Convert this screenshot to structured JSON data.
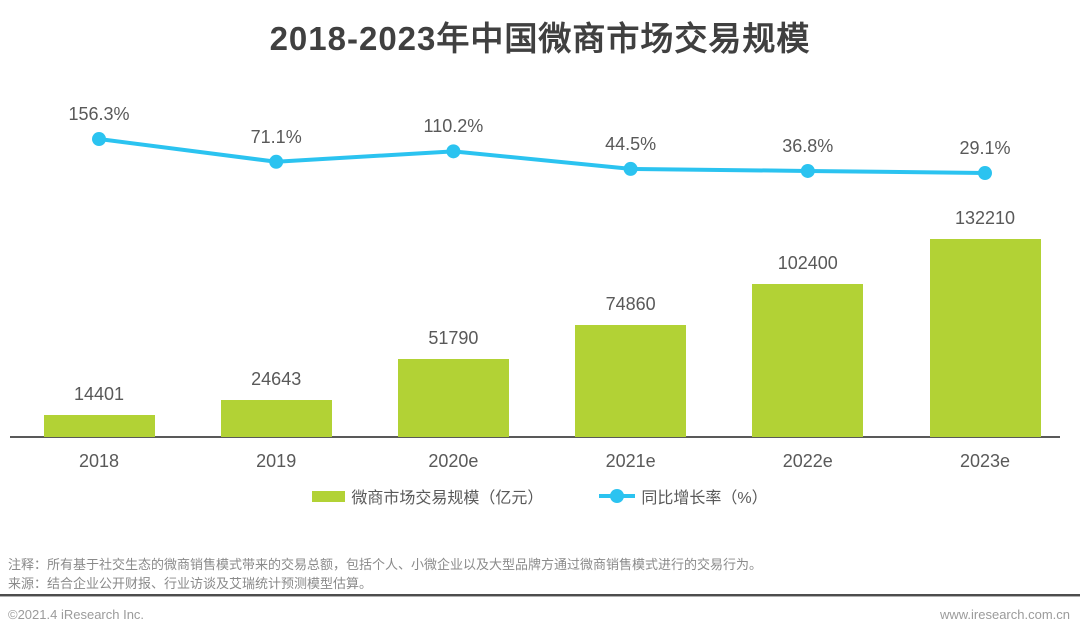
{
  "title": "2018-2023年中国微商市场交易规模",
  "chart_data": {
    "type": "bar",
    "categories": [
      "2018",
      "2019",
      "2020e",
      "2021e",
      "2022e",
      "2023e"
    ],
    "series": [
      {
        "name": "微商市场交易规模（亿元）",
        "type": "bar",
        "values": [
          14401,
          24643,
          51790,
          74860,
          102400,
          132210
        ],
        "value_labels": [
          "14401",
          "24643",
          "51790",
          "74860",
          "102400",
          "132210"
        ],
        "color": "#b2d235"
      },
      {
        "name": "同比增长率（%）",
        "type": "line",
        "values": [
          156.3,
          71.1,
          110.2,
          44.5,
          36.8,
          29.1
        ],
        "value_labels": [
          "156.3%",
          "71.1%",
          "110.2%",
          "44.5%",
          "36.8%",
          "29.1%"
        ],
        "color": "#2bc3f0"
      }
    ],
    "title": "2018-2023年中国微商市场交易规模",
    "xlabel": "",
    "ylabel": "",
    "ylim": [
      0,
      140000
    ],
    "grid": false,
    "legend_position": "bottom"
  },
  "legend": {
    "bar_label": "微商市场交易规模（亿元）",
    "line_label": "同比增长率（%）"
  },
  "notes": {
    "note": "注释：所有基于社交生态的微商销售模式带来的交易总额，包括个人、小微企业以及大型品牌方通过微商销售模式进行的交易行为。",
    "source": "来源：结合企业公开财报、行业访谈及艾瑞统计预测模型估算。"
  },
  "footer": {
    "copyright": "©2021.4 iResearch Inc.",
    "website": "www.iresearch.com.cn"
  },
  "colors": {
    "bar": "#b2d235",
    "line": "#2bc3f0",
    "title_text": "#404040",
    "label_text": "#595959",
    "note_text": "#8a8a8a",
    "axis": "#595959",
    "divider": "#4d4d4d"
  }
}
